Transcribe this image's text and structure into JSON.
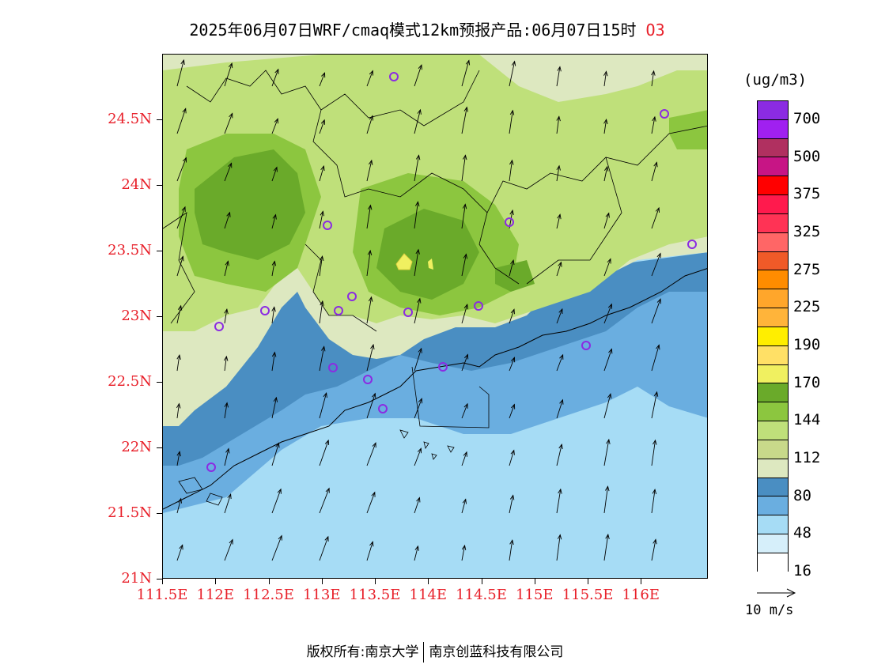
{
  "title": {
    "main": "2025年06月07日WRF/cmaq模式12km预报产品:06月07日15时",
    "species": "O3"
  },
  "axes": {
    "y_ticks": [
      "24.5N",
      "24N",
      "23.5N",
      "23N",
      "22.5N",
      "22N",
      "21.5N",
      "21N"
    ],
    "y_values": [
      24.5,
      24.0,
      23.5,
      23.0,
      22.5,
      22.0,
      21.5,
      21.0
    ],
    "x_ticks": [
      "111.5E",
      "112E",
      "112.5E",
      "113E",
      "113.5E",
      "114E",
      "114.5E",
      "115E",
      "115.5E",
      "116E"
    ],
    "x_values": [
      111.5,
      112.0,
      112.5,
      113.0,
      113.5,
      114.0,
      114.5,
      115.0,
      115.5,
      116.0
    ],
    "lon_range": [
      111.5,
      116.63
    ],
    "lat_range": [
      21.0,
      25.0
    ]
  },
  "legend": {
    "unit": "(ug/m3)",
    "colors": [
      "#8b2be2",
      "#a020f0",
      "#b03060",
      "#c71585",
      "#ff0000",
      "#ff1a4d",
      "#ff3355",
      "#ff6666",
      "#f05a28",
      "#ff8c00",
      "#ffa62b",
      "#ffb43a",
      "#ffee00",
      "#ffe066",
      "#f0f060",
      "#6aaa2a",
      "#8cc63f",
      "#bfe07a",
      "#c8d98a",
      "#dde8c0",
      "#4a8ec2",
      "#6aaee0",
      "#a6dcf5",
      "#d6effa",
      "#ffffff"
    ],
    "labels": [
      "700",
      "500",
      "375",
      "325",
      "275",
      "225",
      "190",
      "170",
      "144",
      "112",
      "80",
      "48",
      "16"
    ]
  },
  "wind": {
    "reference_label": "10 m/s"
  },
  "stations_count_note": "",
  "footer": {
    "left": "版权所有:南京大学",
    "right": "南京创蓝科技有限公司"
  }
}
